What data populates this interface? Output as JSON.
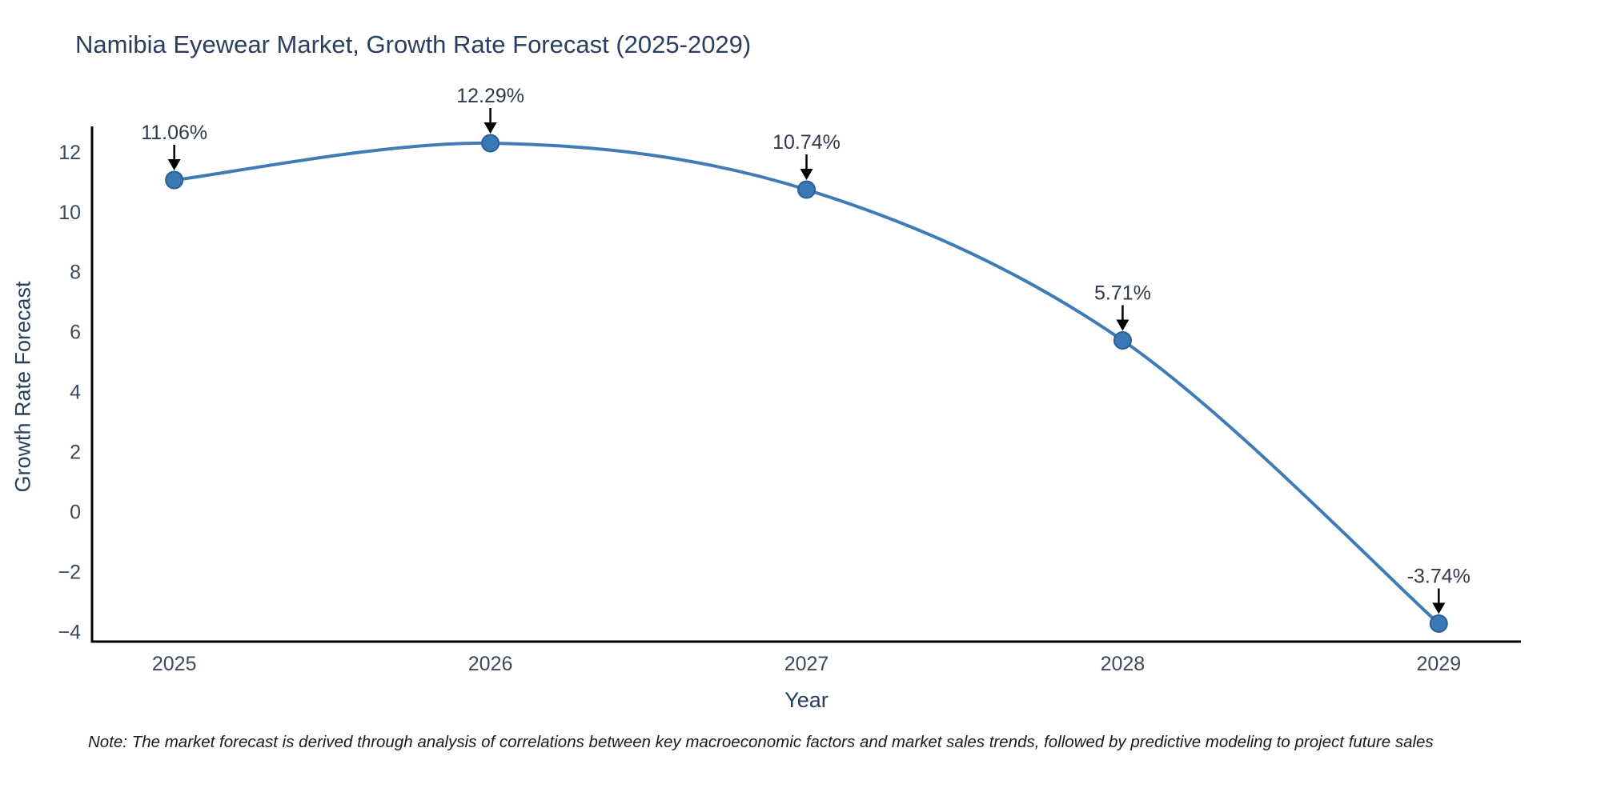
{
  "title": "Namibia Eyewear Market, Growth Rate Forecast (2025-2029)",
  "note": "Note: The market forecast is derived through analysis of correlations between key macroeconomic factors and market sales trends, followed by predictive modeling to project future sales",
  "chart_data": {
    "type": "line",
    "title": "Namibia Eyewear Market, Growth Rate Forecast (2025-2029)",
    "xlabel": "Year",
    "ylabel": "Growth Rate Forecast",
    "x": [
      2025,
      2026,
      2027,
      2028,
      2029
    ],
    "series": [
      {
        "name": "Growth Rate Forecast",
        "values": [
          11.06,
          12.29,
          10.74,
          5.71,
          -3.74
        ]
      }
    ],
    "point_labels": [
      "11.06%",
      "12.29%",
      "10.74%",
      "5.71%",
      "-3.74%"
    ],
    "yticks": [
      -4,
      -2,
      0,
      2,
      4,
      6,
      8,
      10,
      12
    ],
    "ylim": [
      -4.34,
      12.85
    ],
    "xlim": [
      2024.74,
      2029.26
    ],
    "grid": false,
    "legend": "none",
    "line_shape": "spline",
    "colors": {
      "line": "#3f7cb6",
      "marker_fill": "#3878b4",
      "marker_edge": "#2b5f93",
      "axis_line": "#000000",
      "tick_label": "#3b4a5a",
      "annotation_text": "#2f3b4c",
      "annotation_arrow": "#000000",
      "title_text": "#2a3f5f"
    }
  }
}
